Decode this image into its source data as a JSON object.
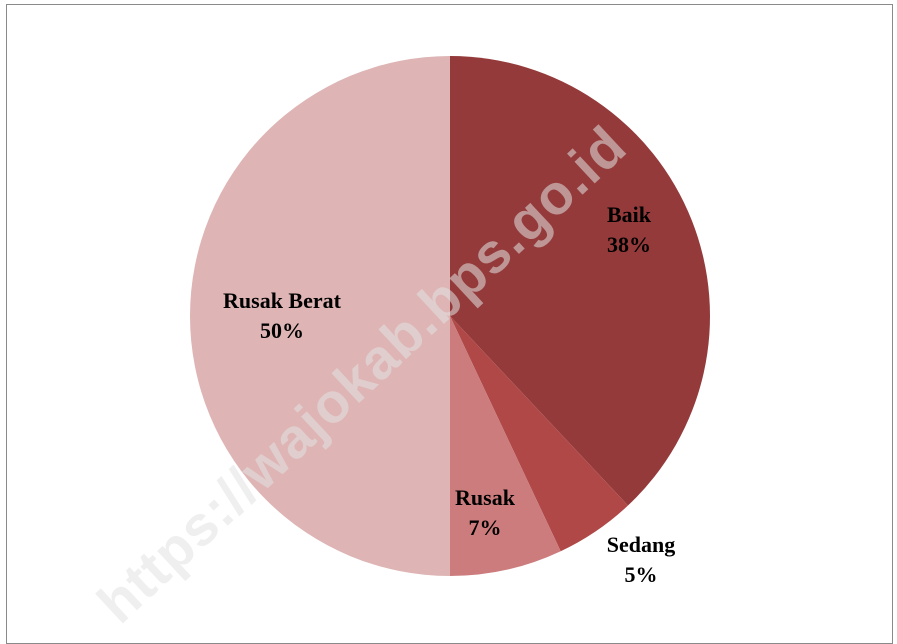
{
  "watermark": "https://wajokab.bps.go.id",
  "chart_data": {
    "type": "pie",
    "title": "",
    "slices": [
      {
        "label": "Baik",
        "value": 38,
        "display": "38%",
        "color": "#943A3A"
      },
      {
        "label": "Sedang",
        "value": 5,
        "display": "5%",
        "color": "#B04848"
      },
      {
        "label": "Rusak",
        "value": 7,
        "display": "7%",
        "color": "#CC7C7C"
      },
      {
        "label": "Rusak Berat",
        "value": 50,
        "display": "50%",
        "color": "#DEB4B4"
      }
    ],
    "start_angle": "12 o'clock",
    "direction": "clockwise",
    "legend": "none",
    "data_labels": "category and percentage"
  }
}
